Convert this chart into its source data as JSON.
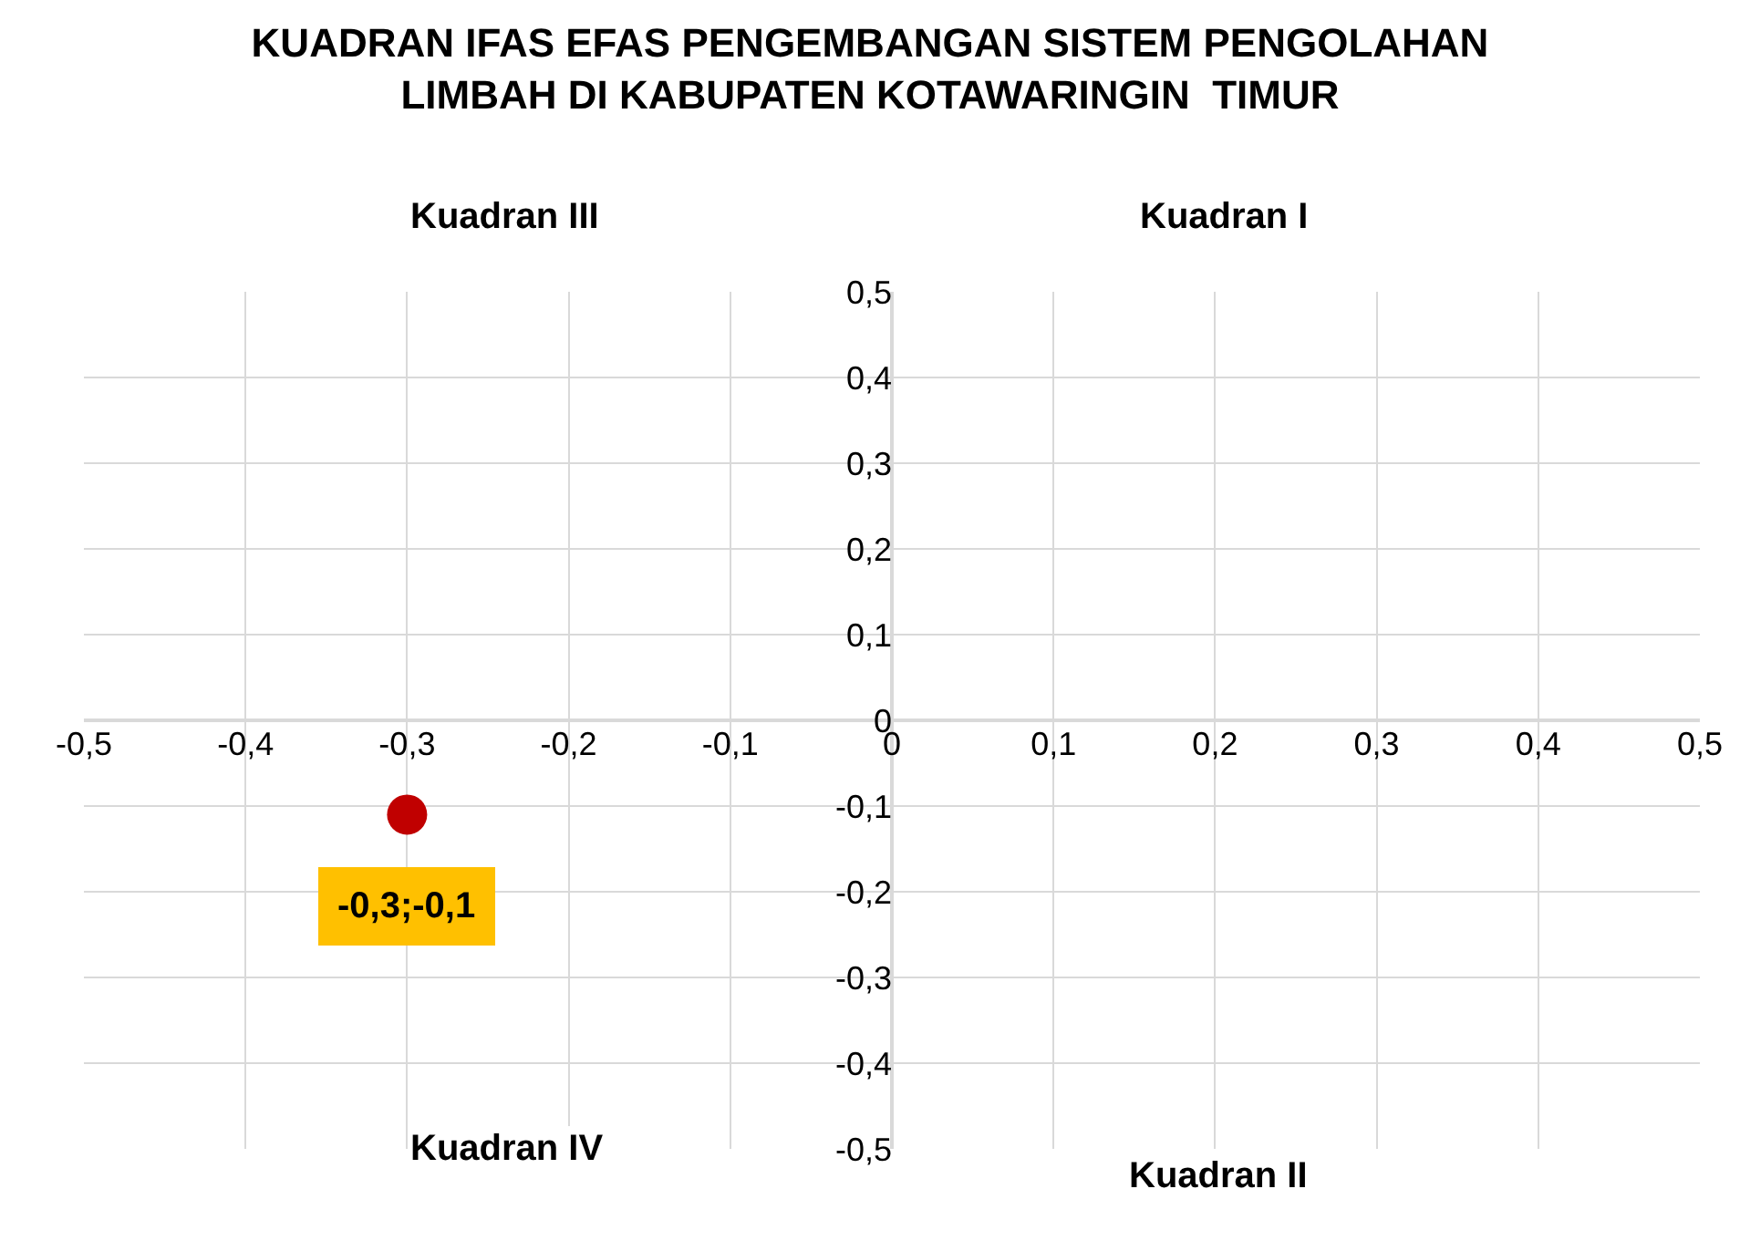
{
  "chart_data": {
    "type": "scatter",
    "title": "KUADRAN IFAS EFAS PENGEMBANGAN SISTEM PENGOLAHAN\nLIMBAH DI KABUPATEN KOTAWARINGIN  TIMUR",
    "x": [
      -0.3
    ],
    "series": [
      {
        "color": "#c00000",
        "values": [
          -0.11
        ],
        "value_labels": [
          "-0,3;-0,1"
        ]
      }
    ],
    "xlim": [
      -0.5,
      0.5
    ],
    "xticks": [
      {
        "value": -0.5,
        "label": "-0,5"
      },
      {
        "value": -0.4,
        "label": "-0,4"
      },
      {
        "value": -0.3,
        "label": "-0,3"
      },
      {
        "value": -0.2,
        "label": "-0,2"
      },
      {
        "value": -0.1,
        "label": "-0,1"
      },
      0,
      {
        "value": 0.1,
        "label": "0,1"
      },
      {
        "value": 0.2,
        "label": "0,2"
      },
      {
        "value": 0.3,
        "label": "0,3"
      },
      {
        "value": 0.4,
        "label": "0,4"
      },
      {
        "value": 0.5,
        "label": "0,5"
      }
    ],
    "ylim": [
      -0.5,
      0.5
    ],
    "yticks": [
      {
        "value": -0.5,
        "label": "-0,5"
      },
      {
        "value": -0.4,
        "label": "-0,4"
      },
      {
        "value": -0.3,
        "label": "-0,3"
      },
      {
        "value": -0.2,
        "label": "-0,2"
      },
      {
        "value": -0.1,
        "label": "-0,1"
      },
      0,
      {
        "value": 0.1,
        "label": "0,1"
      },
      {
        "value": 0.2,
        "label": "0,2"
      },
      {
        "value": 0.3,
        "label": "0,3"
      },
      {
        "value": 0.4,
        "label": "0,4"
      },
      {
        "value": 0.5,
        "label": "0,5"
      }
    ],
    "annotations": [
      "Kuadran III",
      "Kuadran I",
      "Kuadran IV",
      "Kuadran II"
    ],
    "grid": true,
    "marker": "circle"
  }
}
